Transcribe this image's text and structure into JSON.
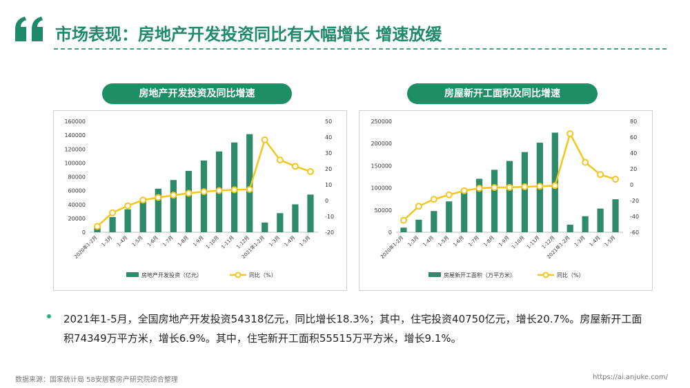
{
  "page": {
    "title": "市场表现：房地产开发投资同比有大幅增长 增速放缓",
    "summary": "2021年1-5月，全国房地产开发投资54318亿元，同比增长18.3%；其中，住宅投资40750亿元，增长20.7%。房屋新开工面积74349万平方米，增长6.9%。其中，住宅新开工面积55515万平方米，增长9.1%。",
    "source": "数据来源：国家统计局 58安居客房产研究院综合整理",
    "url": "https://ai.anjuke.com/"
  },
  "colors": {
    "accent": "#1e8a6a",
    "bar": "#2e8b6a",
    "line": "#f5c518",
    "header_bg": "#1e8f65"
  },
  "chart_data": [
    {
      "type": "bar",
      "title": "房地产开发投资及同比增速",
      "categories": [
        "2020年1-2月",
        "1-3月",
        "1-4月",
        "1-5月",
        "1-6月",
        "1-7月",
        "1-8月",
        "1-9月",
        "1-10月",
        "1-11月",
        "1-12月",
        "2021年1-2月",
        "1-3月",
        "1-4月",
        "1-5月"
      ],
      "series": [
        {
          "name": "房地产开发投资（亿元）",
          "type": "bar",
          "axis": "left",
          "values": [
            10115,
            21963,
            33103,
            45920,
            62780,
            75325,
            88454,
            103484,
            116556,
            129492,
            141443,
            13986,
            27576,
            40240,
            54318
          ]
        },
        {
          "name": "同比（%）",
          "type": "line",
          "axis": "right",
          "values": [
            -16.3,
            -7.7,
            -3.3,
            0.3,
            1.9,
            3.4,
            4.6,
            5.6,
            6.3,
            6.8,
            7.0,
            38.3,
            25.6,
            21.6,
            18.3
          ]
        }
      ],
      "ylim": [
        0,
        160000
      ],
      "yticks": [
        "0",
        "20000",
        "40000",
        "60000",
        "80000",
        "100000",
        "120000",
        "140000",
        "160000"
      ],
      "y2lim": [
        -20,
        50
      ],
      "y2ticks": [
        "-20",
        "-10",
        "0",
        "10",
        "20",
        "30",
        "40",
        "50"
      ],
      "legend": "bottom"
    },
    {
      "type": "bar",
      "title": "房屋新开工面积及同比增速",
      "categories": [
        "2020年1-2月",
        "1-3月",
        "1-4月",
        "1-5月",
        "1-6月",
        "1-7月",
        "1-8月",
        "1-9月",
        "1-10月",
        "1-11月",
        "1-12月",
        "2021年1-2月",
        "1-3月",
        "1-4月",
        "1-5月"
      ],
      "series": [
        {
          "name": "房屋新开工面积（万平方米）",
          "type": "bar",
          "axis": "left",
          "values": [
            10370,
            28203,
            47768,
            69533,
            97537,
            120493,
            140759,
            160560,
            180718,
            201811,
            224433,
            17003,
            36163,
            53342,
            74349
          ]
        },
        {
          "name": "同比（%）",
          "type": "line",
          "axis": "right",
          "values": [
            -44.9,
            -27.2,
            -18.4,
            -12.8,
            -7.6,
            -4.5,
            -3.6,
            -3.4,
            -2.6,
            -2.0,
            -1.2,
            64.3,
            28.2,
            12.8,
            6.9
          ]
        }
      ],
      "ylim": [
        0,
        250000
      ],
      "yticks": [
        "0",
        "50000",
        "100000",
        "150000",
        "200000",
        "250000"
      ],
      "y2lim": [
        -60,
        80
      ],
      "y2ticks": [
        "-60",
        "-40",
        "-20",
        "0",
        "20",
        "40",
        "60",
        "80"
      ],
      "legend": "bottom"
    }
  ]
}
